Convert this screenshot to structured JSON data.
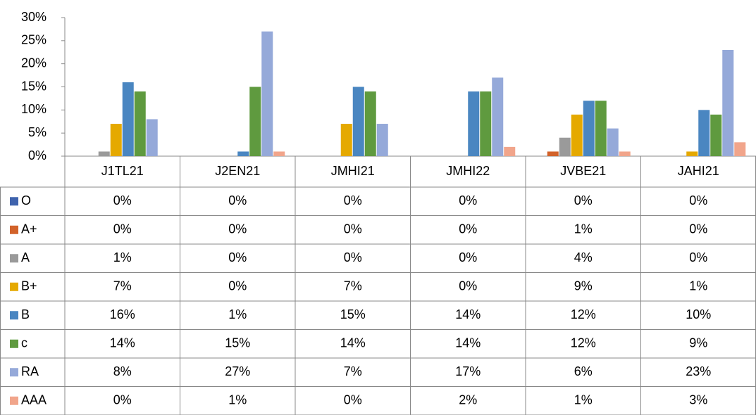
{
  "chart_data": {
    "type": "bar",
    "categories": [
      "J1TL21",
      "J2EN21",
      "JMHI21",
      "JMHI22",
      "JVBE21",
      "JAHI21"
    ],
    "series": [
      {
        "name": "O",
        "color": "#3f63ad",
        "values": [
          0,
          0,
          0,
          0,
          0,
          0
        ],
        "value_labels": [
          "0%",
          "0%",
          "0%",
          "0%",
          "0%",
          "0%"
        ]
      },
      {
        "name": "A+",
        "color": "#d2622a",
        "values": [
          0,
          0,
          0,
          0,
          1,
          0
        ],
        "value_labels": [
          "0%",
          "0%",
          "0%",
          "0%",
          "1%",
          "0%"
        ]
      },
      {
        "name": "A",
        "color": "#9a9a9a",
        "values": [
          1,
          0,
          0,
          0,
          4,
          0
        ],
        "value_labels": [
          "1%",
          "0%",
          "0%",
          "0%",
          "4%",
          "0%"
        ]
      },
      {
        "name": "B+",
        "color": "#e5a900",
        "values": [
          7,
          0,
          7,
          0,
          9,
          1
        ],
        "value_labels": [
          "7%",
          "0%",
          "7%",
          "0%",
          "9%",
          "1%"
        ]
      },
      {
        "name": "B",
        "color": "#4a86c1",
        "values": [
          16,
          1,
          15,
          14,
          12,
          10
        ],
        "value_labels": [
          "16%",
          "1%",
          "15%",
          "14%",
          "12%",
          "10%"
        ]
      },
      {
        "name": "c",
        "color": "#5f9a3f",
        "values": [
          14,
          15,
          14,
          14,
          12,
          9
        ],
        "value_labels": [
          "14%",
          "15%",
          "14%",
          "14%",
          "12%",
          "9%"
        ]
      },
      {
        "name": "RA",
        "color": "#95a9d9",
        "values": [
          8,
          27,
          7,
          17,
          6,
          23
        ],
        "value_labels": [
          "8%",
          "27%",
          "7%",
          "17%",
          "6%",
          "23%"
        ]
      },
      {
        "name": "AAA",
        "color": "#f1a58b",
        "values": [
          0,
          1,
          0,
          2,
          1,
          3
        ],
        "value_labels": [
          "0%",
          "1%",
          "0%",
          "2%",
          "1%",
          "3%"
        ]
      }
    ],
    "ylim": [
      0,
      30
    ],
    "yticks": [
      {
        "value": 0,
        "label": "0%"
      },
      {
        "value": 5,
        "label": "5%"
      },
      {
        "value": 10,
        "label": "10%"
      },
      {
        "value": 15,
        "label": "15%"
      },
      {
        "value": 20,
        "label": "20%"
      },
      {
        "value": 25,
        "label": "25%"
      },
      {
        "value": 30,
        "label": "30%"
      }
    ],
    "grid": false
  }
}
